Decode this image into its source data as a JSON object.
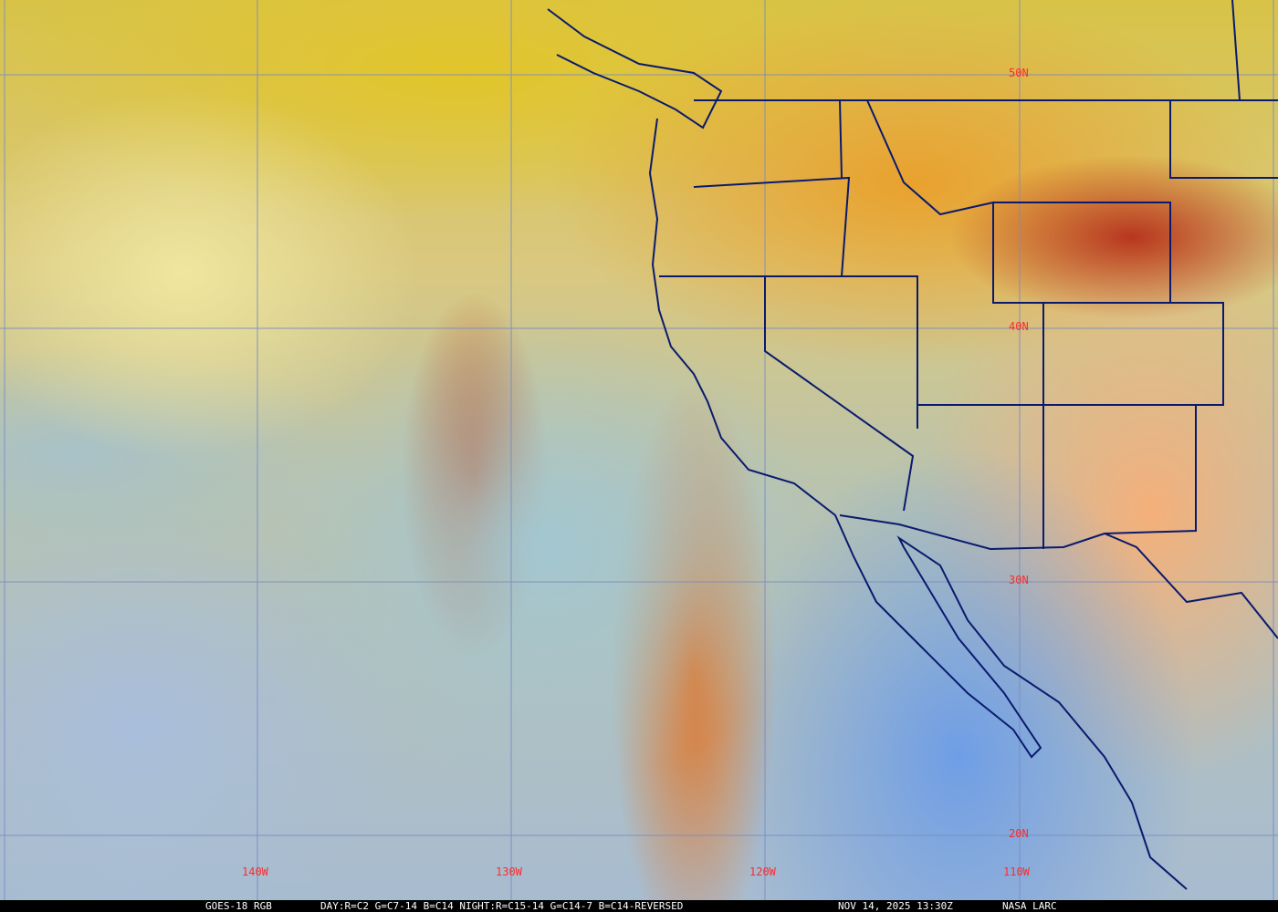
{
  "map": {
    "satellite": "GOES-18",
    "product": "RGB",
    "grid_color": "#7a8cc0",
    "boundary_color": "#0a1a6e",
    "label_color": "#ff2a2a",
    "longitude_labels": [
      "140W",
      "130W",
      "120W",
      "110W"
    ],
    "latitude_labels": [
      "50N",
      "40N",
      "30N",
      "20N"
    ]
  },
  "caption": {
    "satellite_product": "GOES-18 RGB",
    "channels": "DAY:R=C2 G=C7-14 B=C14 NIGHT:R=C15-14 G=C14-7 B=C14-REVERSED",
    "timestamp": "NOV 14, 2025 13:30Z",
    "source": "NASA LARC"
  }
}
